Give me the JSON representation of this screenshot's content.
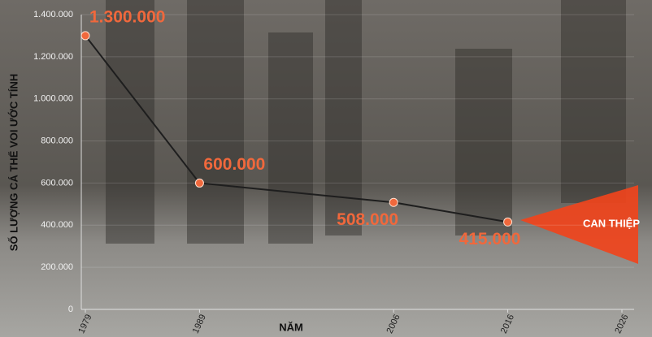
{
  "chart_data": {
    "type": "line",
    "y_label": "SỐ LƯỢNG CÁ THỂ VOI ƯỚC TÍNH",
    "x_label": "NĂM",
    "annotation": "CAN THIỆP",
    "x": [
      1979,
      1989,
      2006,
      2016
    ],
    "values": [
      1300000,
      600000,
      508000,
      415000
    ],
    "value_labels": [
      "1.300.000",
      "600.000",
      "508.000",
      "415.000"
    ],
    "color": "#1e1e1e",
    "marker_color": "#f0683c",
    "xlim": [
      1979,
      2026
    ],
    "xticks": [
      1979,
      1989,
      2006,
      2016,
      2026
    ],
    "ylim": [
      0,
      1400000
    ],
    "yticks": [
      0,
      {
        "value": 200000,
        "label": "200.000"
      },
      {
        "value": 400000,
        "label": "400.000"
      },
      {
        "value": 600000,
        "label": "600.000"
      },
      {
        "value": 800000,
        "label": "800.000"
      },
      {
        "value": 1000000,
        "label": "1.000.000"
      },
      {
        "value": 1200000,
        "label": "1.200.000"
      },
      {
        "value": 1400000,
        "label": "1.400.000"
      }
    ],
    "grid": true
  }
}
